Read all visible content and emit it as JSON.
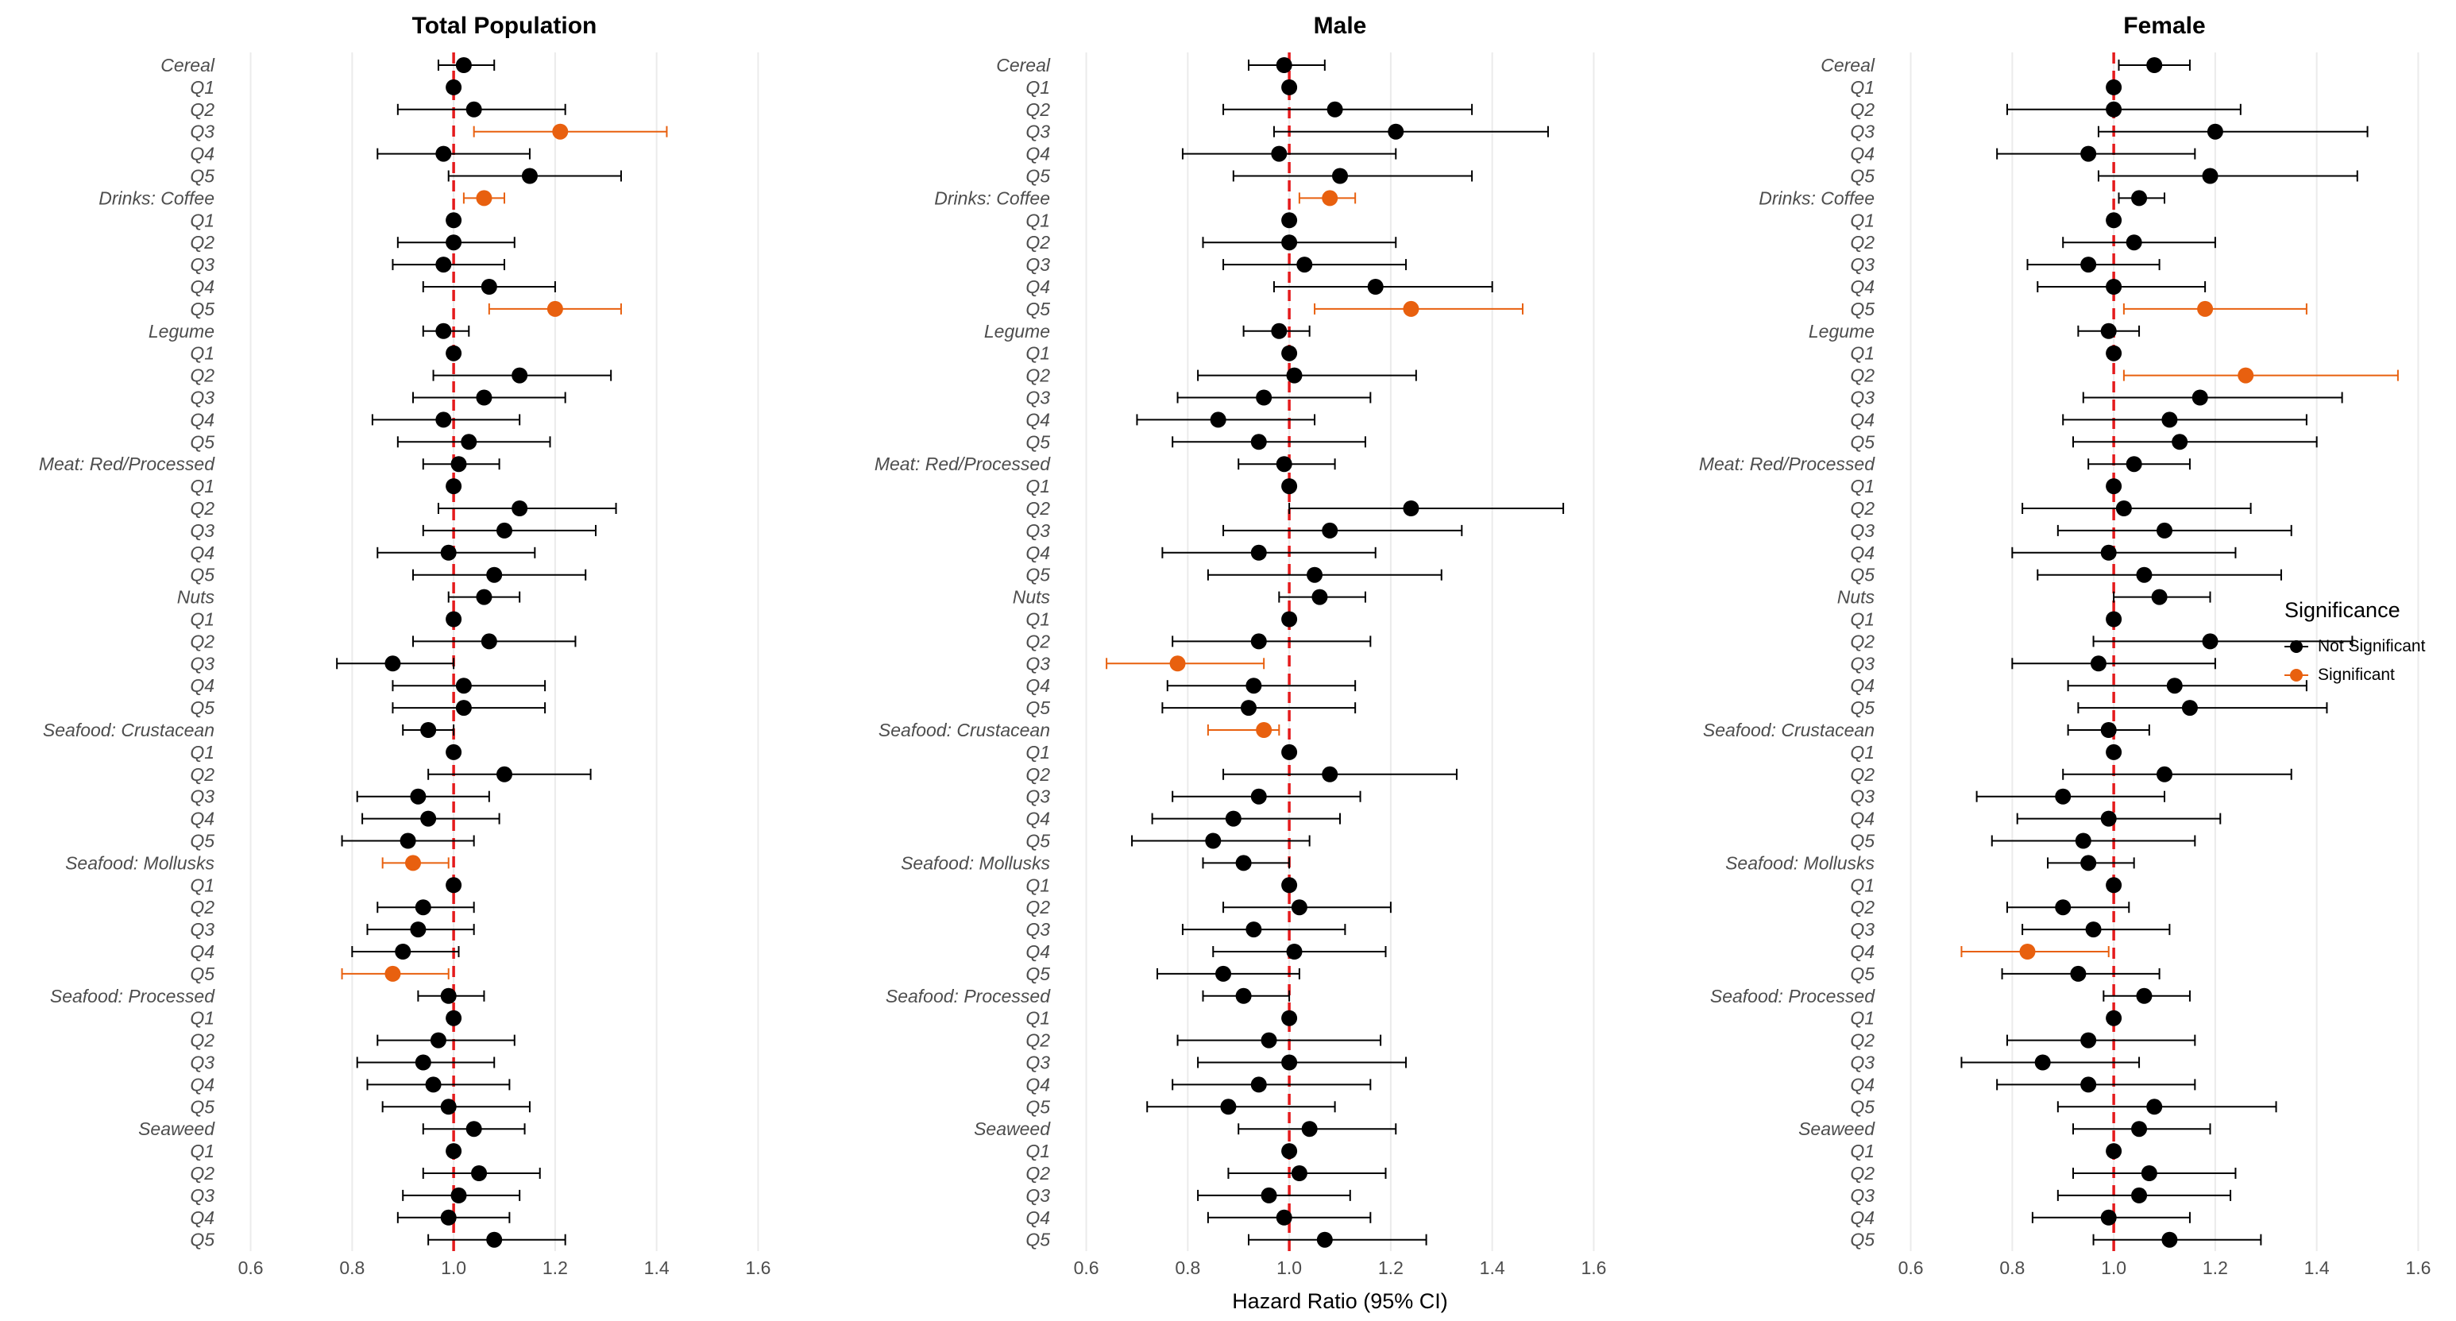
{
  "chart_data": {
    "type": "scatter",
    "subtype": "forest-plot",
    "x_axis": {
      "title": "Hazard Ratio (95% CI)",
      "range": [
        0.56,
        1.64
      ],
      "ticks": [
        0.6,
        0.8,
        1.0,
        1.2,
        1.4,
        1.6
      ],
      "tick_labels": [
        "0.6",
        "0.8",
        "1.0",
        "1.2",
        "1.4",
        "1.6"
      ],
      "reference_line": 1.0
    },
    "grid": "vertical major",
    "reference_line_color": "#e41a1c",
    "legend": {
      "title": "Significance",
      "position": "right",
      "items": [
        {
          "label": "Not Significant",
          "color": "#000000"
        },
        {
          "label": "Significant",
          "color": "#e8600f"
        }
      ]
    },
    "rows": [
      "Cereal",
      "Q1",
      "Q2",
      "Q3",
      "Q4",
      "Q5",
      "Drinks: Coffee",
      "Q1",
      "Q2",
      "Q3",
      "Q4",
      "Q5",
      "Legume",
      "Q1",
      "Q2",
      "Q3",
      "Q4",
      "Q5",
      "Meat: Red/Processed",
      "Q1",
      "Q2",
      "Q3",
      "Q4",
      "Q5",
      "Nuts",
      "Q1",
      "Q2",
      "Q3",
      "Q4",
      "Q5",
      "Seafood: Crustacean",
      "Q1",
      "Q2",
      "Q3",
      "Q4",
      "Q5",
      "Seafood: Mollusks",
      "Q1",
      "Q2",
      "Q3",
      "Q4",
      "Q5",
      "Seafood: Processed",
      "Q1",
      "Q2",
      "Q3",
      "Q4",
      "Q5",
      "Seaweed",
      "Q1",
      "Q2",
      "Q3",
      "Q4",
      "Q5"
    ],
    "panels": [
      {
        "title": "Total Population",
        "hr": [
          1.02,
          1.0,
          1.04,
          1.21,
          0.98,
          1.15,
          1.06,
          1.0,
          1.0,
          0.98,
          1.07,
          1.2,
          0.98,
          1.0,
          1.13,
          1.06,
          0.98,
          1.03,
          1.01,
          1.0,
          1.13,
          1.1,
          0.99,
          1.08,
          1.06,
          1.0,
          1.07,
          0.88,
          1.02,
          1.02,
          0.95,
          1.0,
          1.1,
          0.93,
          0.95,
          0.91,
          0.92,
          1.0,
          0.94,
          0.93,
          0.9,
          0.88,
          0.99,
          1.0,
          0.97,
          0.94,
          0.96,
          0.99,
          1.04,
          1.0,
          1.05,
          1.01,
          0.99,
          1.08
        ],
        "lo": [
          0.97,
          0.99,
          0.89,
          1.04,
          0.85,
          0.99,
          1.02,
          0.99,
          0.89,
          0.88,
          0.94,
          1.07,
          0.94,
          0.99,
          0.96,
          0.92,
          0.84,
          0.89,
          0.94,
          0.99,
          0.97,
          0.94,
          0.85,
          0.92,
          0.99,
          0.99,
          0.92,
          0.77,
          0.88,
          0.88,
          0.9,
          0.99,
          0.95,
          0.81,
          0.82,
          0.78,
          0.86,
          0.99,
          0.85,
          0.83,
          0.8,
          0.78,
          0.93,
          0.99,
          0.85,
          0.81,
          0.83,
          0.86,
          0.94,
          0.99,
          0.94,
          0.9,
          0.89,
          0.95
        ],
        "hi": [
          1.08,
          1.01,
          1.22,
          1.42,
          1.15,
          1.33,
          1.1,
          1.01,
          1.12,
          1.1,
          1.2,
          1.33,
          1.03,
          1.01,
          1.31,
          1.22,
          1.13,
          1.19,
          1.09,
          1.01,
          1.32,
          1.28,
          1.16,
          1.26,
          1.13,
          1.01,
          1.24,
          1.0,
          1.18,
          1.18,
          1.0,
          1.01,
          1.27,
          1.07,
          1.09,
          1.04,
          0.99,
          1.01,
          1.04,
          1.04,
          1.01,
          0.99,
          1.06,
          1.01,
          1.12,
          1.08,
          1.11,
          1.15,
          1.14,
          1.01,
          1.17,
          1.13,
          1.11,
          1.22
        ],
        "sig": [
          0,
          0,
          0,
          1,
          0,
          0,
          1,
          0,
          0,
          0,
          0,
          1,
          0,
          0,
          0,
          0,
          0,
          0,
          0,
          0,
          0,
          0,
          0,
          0,
          0,
          0,
          0,
          0,
          0,
          0,
          0,
          0,
          0,
          0,
          0,
          0,
          1,
          0,
          0,
          0,
          0,
          1,
          0,
          0,
          0,
          0,
          0,
          0,
          0,
          0,
          0,
          0,
          0,
          0
        ]
      },
      {
        "title": "Male",
        "hr": [
          0.99,
          1.0,
          1.09,
          1.21,
          0.98,
          1.1,
          1.08,
          1.0,
          1.0,
          1.03,
          1.17,
          1.24,
          0.98,
          1.0,
          1.01,
          0.95,
          0.86,
          0.94,
          0.99,
          1.0,
          1.24,
          1.08,
          0.94,
          1.05,
          1.06,
          1.0,
          0.94,
          0.78,
          0.93,
          0.92,
          0.95,
          1.0,
          1.08,
          0.94,
          0.89,
          0.85,
          0.91,
          1.0,
          1.02,
          0.93,
          1.01,
          0.87,
          0.91,
          1.0,
          0.96,
          1.0,
          0.94,
          0.88,
          1.04,
          1.0,
          1.02,
          0.96,
          0.99,
          1.07
        ],
        "lo": [
          0.92,
          0.99,
          0.87,
          0.97,
          0.79,
          0.89,
          1.02,
          0.99,
          0.83,
          0.87,
          0.97,
          1.05,
          0.91,
          0.99,
          0.82,
          0.78,
          0.7,
          0.77,
          0.9,
          0.99,
          1.0,
          0.87,
          0.75,
          0.84,
          0.98,
          0.99,
          0.77,
          0.64,
          0.76,
          0.75,
          0.84,
          0.99,
          0.87,
          0.77,
          0.73,
          0.69,
          0.83,
          0.99,
          0.87,
          0.79,
          0.85,
          0.74,
          0.83,
          0.99,
          0.78,
          0.82,
          0.77,
          0.72,
          0.9,
          0.99,
          0.88,
          0.82,
          0.84,
          0.92
        ],
        "hi": [
          1.07,
          1.01,
          1.36,
          1.51,
          1.21,
          1.36,
          1.13,
          1.01,
          1.21,
          1.23,
          1.4,
          1.46,
          1.04,
          1.01,
          1.25,
          1.16,
          1.05,
          1.15,
          1.09,
          1.01,
          1.54,
          1.34,
          1.17,
          1.3,
          1.15,
          1.01,
          1.16,
          0.95,
          1.13,
          1.13,
          0.98,
          1.01,
          1.33,
          1.14,
          1.1,
          1.04,
          1.0,
          1.01,
          1.2,
          1.11,
          1.19,
          1.02,
          1.0,
          1.01,
          1.18,
          1.23,
          1.16,
          1.09,
          1.21,
          1.01,
          1.19,
          1.12,
          1.16,
          1.27
        ],
        "sig": [
          0,
          0,
          0,
          0,
          0,
          0,
          1,
          0,
          0,
          0,
          0,
          1,
          0,
          0,
          0,
          0,
          0,
          0,
          0,
          0,
          0,
          0,
          0,
          0,
          0,
          0,
          0,
          1,
          0,
          0,
          1,
          0,
          0,
          0,
          0,
          0,
          0,
          0,
          0,
          0,
          0,
          0,
          0,
          0,
          0,
          0,
          0,
          0,
          0,
          0,
          0,
          0,
          0,
          0
        ]
      },
      {
        "title": "Female",
        "hr": [
          1.08,
          1.0,
          1.0,
          1.2,
          0.95,
          1.19,
          1.05,
          1.0,
          1.04,
          0.95,
          1.0,
          1.18,
          0.99,
          1.0,
          1.26,
          1.17,
          1.11,
          1.13,
          1.04,
          1.0,
          1.02,
          1.1,
          0.99,
          1.06,
          1.09,
          1.0,
          1.19,
          0.97,
          1.12,
          1.15,
          0.99,
          1.0,
          1.1,
          0.9,
          0.99,
          0.94,
          0.95,
          1.0,
          0.9,
          0.96,
          0.83,
          0.93,
          1.06,
          1.0,
          0.95,
          0.86,
          0.95,
          1.08,
          1.05,
          1.0,
          1.07,
          1.05,
          0.99,
          1.11
        ],
        "lo": [
          1.01,
          0.99,
          0.79,
          0.97,
          0.77,
          0.97,
          1.01,
          0.99,
          0.9,
          0.83,
          0.85,
          1.02,
          0.93,
          0.99,
          1.02,
          0.94,
          0.9,
          0.92,
          0.95,
          0.99,
          0.82,
          0.89,
          0.8,
          0.85,
          1.0,
          0.99,
          0.96,
          0.8,
          0.91,
          0.93,
          0.91,
          0.99,
          0.9,
          0.73,
          0.81,
          0.76,
          0.87,
          0.99,
          0.79,
          0.82,
          0.7,
          0.78,
          0.98,
          0.99,
          0.79,
          0.7,
          0.77,
          0.89,
          0.92,
          0.99,
          0.92,
          0.89,
          0.84,
          0.96
        ],
        "hi": [
          1.15,
          1.01,
          1.25,
          1.5,
          1.16,
          1.48,
          1.1,
          1.01,
          1.2,
          1.09,
          1.18,
          1.38,
          1.05,
          1.01,
          1.56,
          1.45,
          1.38,
          1.4,
          1.15,
          1.01,
          1.27,
          1.35,
          1.24,
          1.33,
          1.19,
          1.01,
          1.47,
          1.2,
          1.38,
          1.42,
          1.07,
          1.01,
          1.35,
          1.1,
          1.21,
          1.16,
          1.04,
          1.01,
          1.03,
          1.11,
          0.99,
          1.09,
          1.15,
          1.01,
          1.16,
          1.05,
          1.16,
          1.32,
          1.19,
          1.01,
          1.24,
          1.23,
          1.15,
          1.29
        ],
        "sig": [
          0,
          0,
          0,
          0,
          0,
          0,
          0,
          0,
          0,
          0,
          0,
          1,
          0,
          0,
          1,
          0,
          0,
          0,
          0,
          0,
          0,
          0,
          0,
          0,
          0,
          0,
          0,
          0,
          0,
          0,
          0,
          0,
          0,
          0,
          0,
          0,
          0,
          0,
          0,
          0,
          1,
          0,
          0,
          0,
          0,
          0,
          0,
          0,
          0,
          0,
          0,
          0,
          0,
          0
        ]
      }
    ]
  }
}
